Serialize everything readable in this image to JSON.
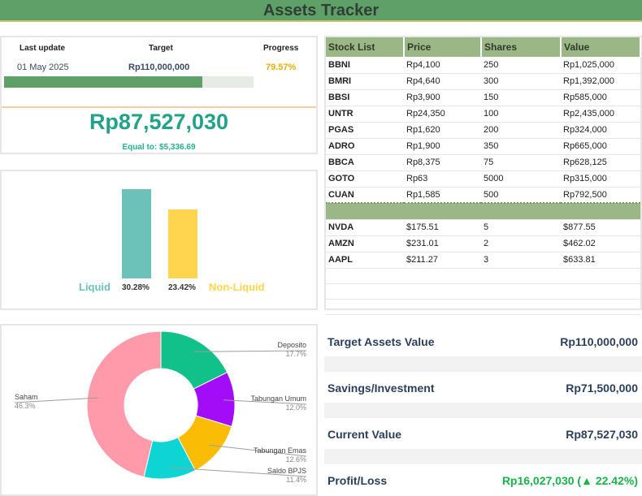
{
  "title": "Assets Tracker",
  "summary_top": {
    "last_update_header": "Last update",
    "target_header": "Target",
    "progress_header": "Progress",
    "last_update": "01 May 2025",
    "target": "Rp110,000,000",
    "progress": "79.57%",
    "progress_fraction": 0.7957,
    "total": "Rp87,527,030",
    "equal_to": "Equal to: $5,336.69"
  },
  "liquidity": {
    "liquid_label": "Liquid",
    "non_liquid_label": "Non-Liquid",
    "liquid_pct": "30.28%",
    "non_liquid_pct": "23.42%",
    "liquid_value": 30.28,
    "non_liquid_value": 23.42,
    "liquid_color": "#6cc1b9",
    "non_liquid_color": "#ffd54f"
  },
  "allocation": {
    "slices": [
      {
        "name": "Deposito",
        "pct": "17.7%",
        "value": 17.7,
        "color": "#12c08a"
      },
      {
        "name": "Tabungan Umum",
        "pct": "12.0%",
        "value": 12.0,
        "color": "#a30cf7"
      },
      {
        "name": "Tabungan Emas",
        "pct": "12.6%",
        "value": 12.6,
        "color": "#fbbc05"
      },
      {
        "name": "Saldo BPJS",
        "pct": "11.4%",
        "value": 11.4,
        "color": "#0fd4d4"
      },
      {
        "name": "Saham",
        "pct": "46.3%",
        "value": 46.3,
        "color": "#ff9aaa"
      }
    ]
  },
  "stocks": {
    "headers": [
      "Stock List",
      "Price",
      "Shares",
      "Value"
    ],
    "idr_rows": [
      [
        "BBNI",
        "Rp4,100",
        "250",
        "Rp1,025,000"
      ],
      [
        "BMRI",
        "Rp4,640",
        "300",
        "Rp1,392,000"
      ],
      [
        "BBSI",
        "Rp3,900",
        "150",
        "Rp585,000"
      ],
      [
        "UNTR",
        "Rp24,350",
        "100",
        "Rp2,435,000"
      ],
      [
        "PGAS",
        "Rp1,620",
        "200",
        "Rp324,000"
      ],
      [
        "ADRO",
        "Rp1,900",
        "350",
        "Rp665,000"
      ],
      [
        "BBCA",
        "Rp8,375",
        "75",
        "Rp628,125"
      ],
      [
        "GOTO",
        "Rp63",
        "5000",
        "Rp315,000"
      ],
      [
        "CUAN",
        "Rp1,585",
        "500",
        "Rp792,500"
      ]
    ],
    "usd_rows": [
      [
        "NVDA",
        "$175.51",
        "5",
        "$877.55"
      ],
      [
        "AMZN",
        "$231.01",
        "2",
        "$462.02"
      ],
      [
        "AAPL",
        "$211.27",
        "3",
        "$633.81"
      ]
    ]
  },
  "totals": [
    {
      "label": "Target Assets Value",
      "value": "Rp110,000,000"
    },
    {
      "label": "Savings/Investment",
      "value": "Rp71,500,000"
    },
    {
      "label": "Current Value",
      "value": "Rp87,527,030"
    },
    {
      "label": "Profit/Loss",
      "value": "Rp16,027,030 (▲ 22.42%)",
      "color": "#19b34a"
    }
  ]
}
